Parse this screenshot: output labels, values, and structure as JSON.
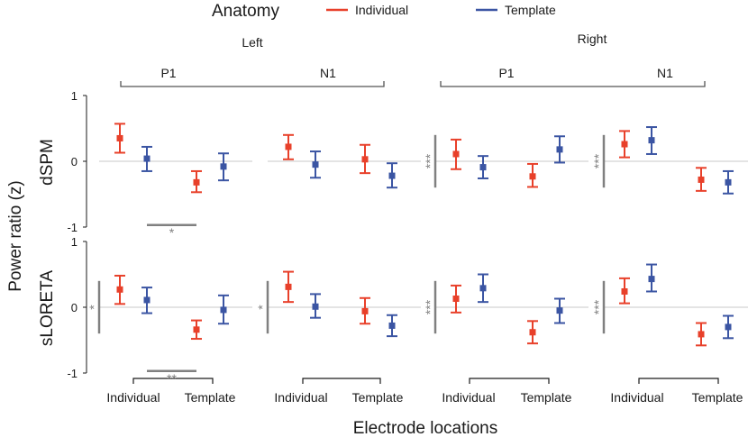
{
  "chart_data": {
    "type": "errorbar",
    "title": "",
    "ylabel": "Power ratio (z)",
    "xlabel": "Electrode locations",
    "ylim": [
      -1,
      1
    ],
    "yticks": [
      -1,
      0,
      1
    ],
    "x_categories": [
      "Individual",
      "Template"
    ],
    "legend": {
      "title": "Anatomy",
      "placement": "top",
      "entries": [
        {
          "name": "Individual",
          "color": "#e8402a"
        },
        {
          "name": "Template",
          "color": "#3b55a3"
        }
      ]
    },
    "hemispheres": [
      "Left",
      "Right"
    ],
    "components": [
      "P1",
      "N1"
    ],
    "methods": [
      "dSPM",
      "sLORETA"
    ],
    "panels": [
      {
        "method": "dSPM",
        "hemisphere": "Left",
        "component": "P1",
        "points": [
          {
            "electrodes": "Individual",
            "anatomy": "Individual",
            "mean": 0.35,
            "low": 0.13,
            "high": 0.57
          },
          {
            "electrodes": "Individual",
            "anatomy": "Template",
            "mean": 0.04,
            "low": -0.15,
            "high": 0.22
          },
          {
            "electrodes": "Template",
            "anatomy": "Individual",
            "mean": -0.32,
            "low": -0.47,
            "high": -0.15
          },
          {
            "electrodes": "Template",
            "anatomy": "Template",
            "mean": -0.08,
            "low": -0.29,
            "high": 0.12
          }
        ],
        "bottom_bracket": "*"
      },
      {
        "method": "dSPM",
        "hemisphere": "Left",
        "component": "N1",
        "points": [
          {
            "electrodes": "Individual",
            "anatomy": "Individual",
            "mean": 0.22,
            "low": 0.03,
            "high": 0.4
          },
          {
            "electrodes": "Individual",
            "anatomy": "Template",
            "mean": -0.05,
            "low": -0.25,
            "high": 0.15
          },
          {
            "electrodes": "Template",
            "anatomy": "Individual",
            "mean": 0.03,
            "low": -0.18,
            "high": 0.25
          },
          {
            "electrodes": "Template",
            "anatomy": "Template",
            "mean": -0.22,
            "low": -0.4,
            "high": -0.03
          }
        ]
      },
      {
        "method": "dSPM",
        "hemisphere": "Right",
        "component": "P1",
        "points": [
          {
            "electrodes": "Individual",
            "anatomy": "Individual",
            "mean": 0.11,
            "low": -0.12,
            "high": 0.33
          },
          {
            "electrodes": "Individual",
            "anatomy": "Template",
            "mean": -0.09,
            "low": -0.26,
            "high": 0.08
          },
          {
            "electrodes": "Template",
            "anatomy": "Individual",
            "mean": -0.23,
            "low": -0.39,
            "high": -0.04
          },
          {
            "electrodes": "Template",
            "anatomy": "Template",
            "mean": 0.18,
            "low": -0.02,
            "high": 0.38
          }
        ],
        "left_bracket": "***"
      },
      {
        "method": "dSPM",
        "hemisphere": "Right",
        "component": "N1",
        "points": [
          {
            "electrodes": "Individual",
            "anatomy": "Individual",
            "mean": 0.26,
            "low": 0.06,
            "high": 0.46
          },
          {
            "electrodes": "Individual",
            "anatomy": "Template",
            "mean": 0.32,
            "low": 0.11,
            "high": 0.52
          },
          {
            "electrodes": "Template",
            "anatomy": "Individual",
            "mean": -0.28,
            "low": -0.45,
            "high": -0.1
          },
          {
            "electrodes": "Template",
            "anatomy": "Template",
            "mean": -0.32,
            "low": -0.49,
            "high": -0.15
          }
        ],
        "left_bracket": "***"
      },
      {
        "method": "sLORETA",
        "hemisphere": "Left",
        "component": "P1",
        "points": [
          {
            "electrodes": "Individual",
            "anatomy": "Individual",
            "mean": 0.27,
            "low": 0.05,
            "high": 0.48
          },
          {
            "electrodes": "Individual",
            "anatomy": "Template",
            "mean": 0.11,
            "low": -0.09,
            "high": 0.3
          },
          {
            "electrodes": "Template",
            "anatomy": "Individual",
            "mean": -0.34,
            "low": -0.48,
            "high": -0.2
          },
          {
            "electrodes": "Template",
            "anatomy": "Template",
            "mean": -0.04,
            "low": -0.25,
            "high": 0.18
          }
        ],
        "left_bracket": "*",
        "bottom_bracket": "**"
      },
      {
        "method": "sLORETA",
        "hemisphere": "Left",
        "component": "N1",
        "points": [
          {
            "electrodes": "Individual",
            "anatomy": "Individual",
            "mean": 0.31,
            "low": 0.08,
            "high": 0.54
          },
          {
            "electrodes": "Individual",
            "anatomy": "Template",
            "mean": 0.01,
            "low": -0.16,
            "high": 0.2
          },
          {
            "electrodes": "Template",
            "anatomy": "Individual",
            "mean": -0.06,
            "low": -0.25,
            "high": 0.14
          },
          {
            "electrodes": "Template",
            "anatomy": "Template",
            "mean": -0.28,
            "low": -0.44,
            "high": -0.12
          }
        ],
        "left_bracket": "*"
      },
      {
        "method": "sLORETA",
        "hemisphere": "Right",
        "component": "P1",
        "points": [
          {
            "electrodes": "Individual",
            "anatomy": "Individual",
            "mean": 0.13,
            "low": -0.08,
            "high": 0.33
          },
          {
            "electrodes": "Individual",
            "anatomy": "Template",
            "mean": 0.29,
            "low": 0.08,
            "high": 0.5
          },
          {
            "electrodes": "Template",
            "anatomy": "Individual",
            "mean": -0.38,
            "low": -0.55,
            "high": -0.21
          },
          {
            "electrodes": "Template",
            "anatomy": "Template",
            "mean": -0.05,
            "low": -0.24,
            "high": 0.13
          }
        ],
        "left_bracket": "***"
      },
      {
        "method": "sLORETA",
        "hemisphere": "Right",
        "component": "N1",
        "points": [
          {
            "electrodes": "Individual",
            "anatomy": "Individual",
            "mean": 0.24,
            "low": 0.06,
            "high": 0.44
          },
          {
            "electrodes": "Individual",
            "anatomy": "Template",
            "mean": 0.43,
            "low": 0.24,
            "high": 0.65
          },
          {
            "electrodes": "Template",
            "anatomy": "Individual",
            "mean": -0.41,
            "low": -0.58,
            "high": -0.24
          },
          {
            "electrodes": "Template",
            "anatomy": "Template",
            "mean": -0.3,
            "low": -0.47,
            "high": -0.13
          }
        ],
        "left_bracket": "***"
      }
    ]
  }
}
